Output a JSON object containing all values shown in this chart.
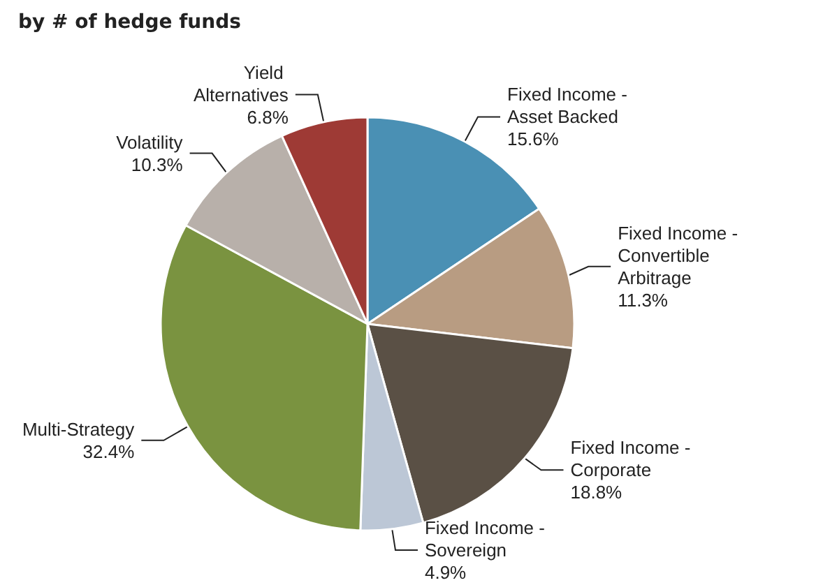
{
  "chart_data": {
    "type": "pie",
    "title": "by # of hedge funds",
    "categories": [
      "Fixed Income - Asset Backed",
      "Fixed Income - Convertible Arbitrage",
      "Fixed Income - Corporate",
      "Fixed Income - Sovereign",
      "Multi-Strategy",
      "Volatility",
      "Yield Alternatives"
    ],
    "values": [
      15.6,
      11.3,
      18.8,
      4.9,
      32.4,
      10.3,
      6.8
    ],
    "colors": [
      "#4a90b4",
      "#b89c82",
      "#5a5045",
      "#bcc7d6",
      "#7a9340",
      "#b8b0aa",
      "#9e3a35"
    ],
    "value_labels": [
      "15.6%",
      "11.3%",
      "18.8%",
      "4.9%",
      "32.4%",
      "10.3%",
      "6.8%"
    ],
    "legend": false
  }
}
